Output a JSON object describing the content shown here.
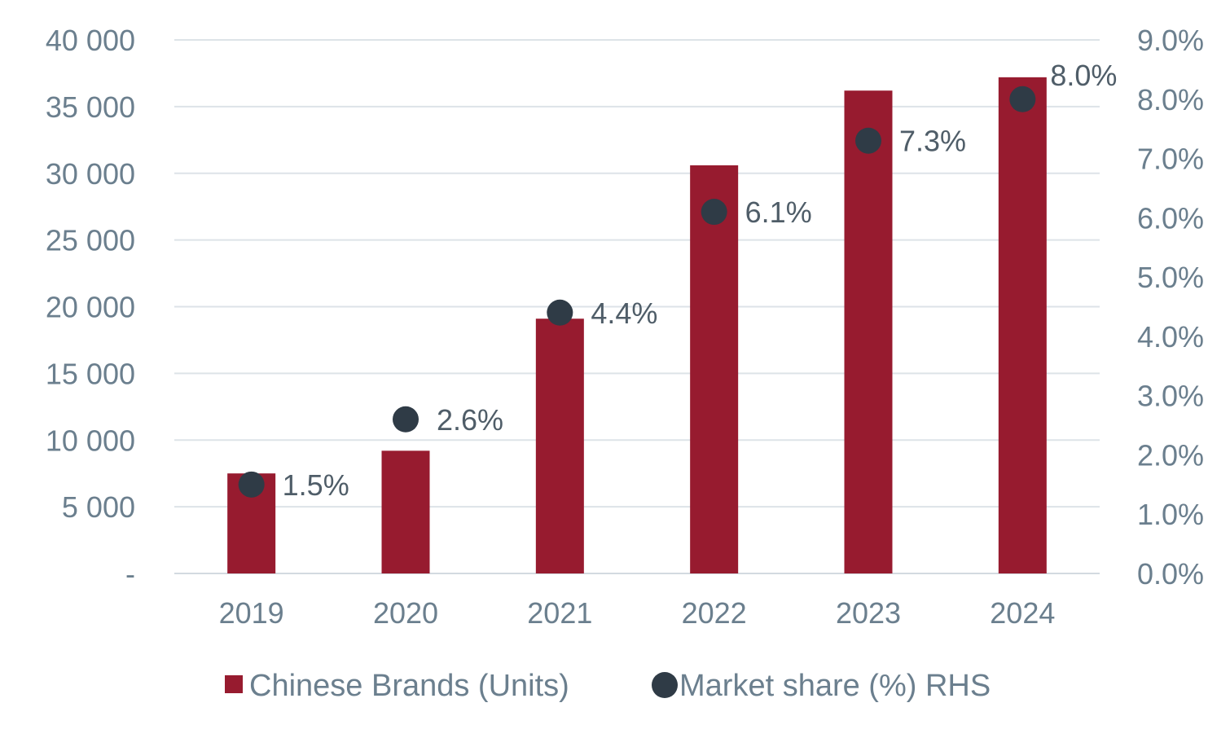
{
  "chart_data": {
    "type": "bar",
    "categories": [
      "2019",
      "2020",
      "2021",
      "2022",
      "2023",
      "2024"
    ],
    "series": [
      {
        "name": "Chinese Brands (Units)",
        "type": "bar",
        "axis": "left",
        "values": [
          7500,
          9200,
          19100,
          30600,
          36200,
          37200
        ]
      },
      {
        "name": "Market share (%) RHS",
        "type": "scatter",
        "axis": "right",
        "values": [
          1.5,
          2.6,
          4.4,
          6.1,
          7.3,
          8.0
        ],
        "data_labels": [
          "1.5%",
          "2.6%",
          "4.4%",
          "6.1%",
          "7.3%",
          "8.0%"
        ]
      }
    ],
    "y_left": {
      "ylim": [
        0,
        40000
      ],
      "ticks": [
        0,
        5000,
        10000,
        15000,
        20000,
        25000,
        30000,
        35000,
        40000
      ],
      "tick_labels": [
        "-",
        "5 000",
        "10 000",
        "15 000",
        "20 000",
        "25 000",
        "30 000",
        "35 000",
        "40 000"
      ]
    },
    "y_right": {
      "ylim": [
        0,
        9
      ],
      "ticks": [
        0,
        1,
        2,
        3,
        4,
        5,
        6,
        7,
        8,
        9
      ],
      "tick_labels": [
        "0.0%",
        "1.0%",
        "2.0%",
        "3.0%",
        "4.0%",
        "5.0%",
        "6.0%",
        "7.0%",
        "8.0%",
        "9.0%"
      ]
    },
    "title": "",
    "xlabel": "",
    "ylabel": "",
    "grid": true,
    "legend_position": "bottom",
    "colors": {
      "bar": "#971b2f",
      "marker": "#2f3b46",
      "tick_text": "#6b7f8e",
      "label_text": "#4f5d68",
      "grid": "#dde3e8"
    }
  }
}
